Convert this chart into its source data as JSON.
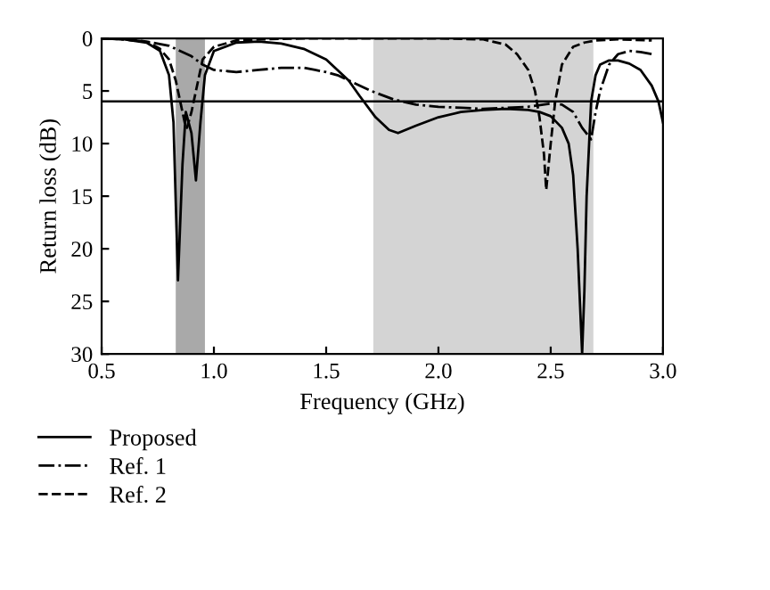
{
  "chart_data": {
    "type": "line",
    "xlabel": "Frequency (GHz)",
    "ylabel": "Return loss (dB)",
    "xlim": [
      0.5,
      3.0
    ],
    "xticks": [
      0.5,
      {
        "value": 1,
        "label": "1.0"
      },
      1.5,
      {
        "value": 2,
        "label": "2.0"
      },
      2.5,
      {
        "value": 3,
        "label": "3.0"
      }
    ],
    "ylim": [
      30,
      0
    ],
    "yticks": [
      0,
      5,
      10,
      15,
      20,
      25,
      30
    ],
    "grid": false,
    "legend": "bottom left",
    "marker": "none",
    "series": [
      {
        "name": "Proposed",
        "color": "#000000",
        "line_style": "solid",
        "x": [
          0.5,
          0.6,
          0.7,
          0.76,
          0.8,
          0.82,
          0.84,
          0.86,
          0.875,
          0.9,
          0.92,
          0.94,
          0.96,
          1.0,
          1.1,
          1.2,
          1.3,
          1.4,
          1.5,
          1.55,
          1.6,
          1.65,
          1.72,
          1.78,
          1.82,
          1.9,
          2.0,
          2.1,
          2.2,
          2.3,
          2.4,
          2.45,
          2.5,
          2.55,
          2.58,
          2.6,
          2.62,
          2.64,
          2.65,
          2.66,
          2.68,
          2.7,
          2.72,
          2.76,
          2.8,
          2.85,
          2.9,
          2.95,
          2.98,
          3.0
        ],
        "values": [
          0,
          0.1,
          0.4,
          1.2,
          3.5,
          8,
          23,
          12,
          7,
          9,
          13.5,
          8,
          3.5,
          1.2,
          0.4,
          0.3,
          0.5,
          1,
          2,
          3,
          4,
          5.5,
          7.5,
          8.7,
          9,
          8.3,
          7.5,
          7,
          6.8,
          6.7,
          6.8,
          7,
          7.4,
          8.5,
          10,
          13,
          20,
          30,
          24,
          15,
          6,
          3.5,
          2.5,
          2.1,
          2.1,
          2.4,
          3,
          4.5,
          6,
          8
        ]
      },
      {
        "name": "Ref. 1",
        "color": "#000000",
        "line_style": "dashdot",
        "x": [
          0.5,
          0.6,
          0.7,
          0.8,
          0.85,
          0.9,
          0.95,
          1.0,
          1.05,
          1.1,
          1.2,
          1.3,
          1.4,
          1.45,
          1.5,
          1.55,
          1.6,
          1.7,
          1.8,
          1.9,
          2.0,
          2.1,
          2.2,
          2.3,
          2.4,
          2.5,
          2.55,
          2.6,
          2.64,
          2.68,
          2.7,
          2.72,
          2.76,
          2.8,
          2.85,
          2.9,
          2.95
        ],
        "values": [
          0,
          0.1,
          0.3,
          0.7,
          1.2,
          1.7,
          2.5,
          3,
          3.1,
          3.2,
          3,
          2.8,
          2.8,
          3,
          3.2,
          3.5,
          4,
          5,
          5.8,
          6.3,
          6.5,
          6.6,
          6.7,
          6.6,
          6.5,
          6.2,
          6.3,
          7,
          8.5,
          9.6,
          7,
          5,
          2.5,
          1.5,
          1.2,
          1.3,
          1.5
        ]
      },
      {
        "name": "Ref. 2",
        "color": "#000000",
        "line_style": "dashed",
        "x": [
          0.5,
          0.6,
          0.7,
          0.76,
          0.8,
          0.83,
          0.85,
          0.87,
          0.88,
          0.9,
          0.92,
          0.95,
          1.0,
          1.1,
          1.2,
          1.4,
          1.6,
          1.8,
          2.0,
          2.2,
          2.3,
          2.35,
          2.4,
          2.43,
          2.45,
          2.47,
          2.48,
          2.5,
          2.52,
          2.55,
          2.6,
          2.65,
          2.7,
          2.8,
          2.95
        ],
        "values": [
          0,
          0.1,
          0.3,
          1,
          2,
          4,
          6,
          8,
          8.5,
          7,
          5,
          2,
          0.8,
          0.2,
          0.1,
          0,
          0,
          0,
          0,
          0.1,
          0.6,
          1.5,
          3,
          5,
          7.5,
          11,
          14.4,
          10,
          6,
          2.5,
          0.8,
          0.4,
          0.2,
          0.1,
          0.2
        ]
      }
    ],
    "ref_lines": [
      {
        "axis": "y",
        "value": 6,
        "color": "#000000",
        "line_style": "solid"
      }
    ],
    "bands": [
      {
        "axis": "x",
        "from": 0.83,
        "to": 0.96,
        "color": "#a9a9a9"
      },
      {
        "axis": "x",
        "from": 1.71,
        "to": 2.69,
        "color": "#d4d4d4"
      }
    ]
  }
}
